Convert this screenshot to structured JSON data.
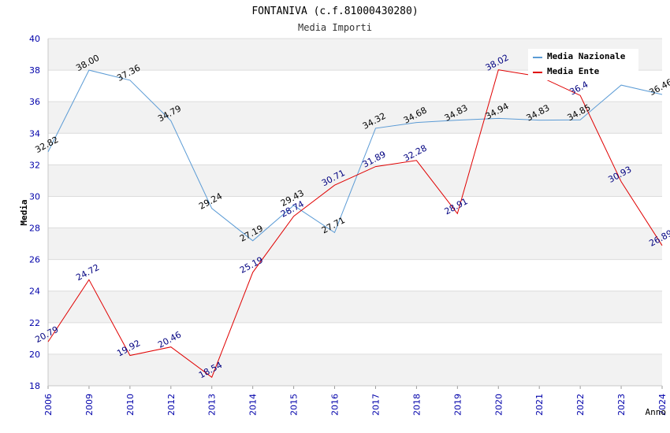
{
  "chart_data": {
    "type": "line",
    "title": "FONTANIVA (c.f.81000430280)",
    "subtitle": "Media Importi",
    "xlabel": "Anno",
    "ylabel": "Media",
    "ylim": [
      18,
      40
    ],
    "yticks": [
      18,
      20,
      22,
      24,
      26,
      28,
      30,
      32,
      34,
      36,
      38,
      40
    ],
    "categories": [
      "2006",
      "2009",
      "2010",
      "2012",
      "2013",
      "2014",
      "2015",
      "2016",
      "2017",
      "2018",
      "2019",
      "2020",
      "2021",
      "2022",
      "2023",
      "2024"
    ],
    "grid": true,
    "legend_position": "top-right",
    "series": [
      {
        "name": "Media Nazionale",
        "color": "#5b9bd5",
        "label_color": "#000000",
        "values": [
          32.82,
          38.0,
          37.36,
          34.79,
          29.24,
          27.19,
          29.43,
          27.71,
          34.32,
          34.68,
          34.83,
          34.94,
          34.83,
          34.85,
          37.05,
          36.46
        ],
        "labels": [
          "32.82",
          "38.00",
          "37.36",
          "34.79",
          "29.24",
          "27.19",
          "29.43",
          "27.71",
          "34.32",
          "34.68",
          "34.83",
          "34.94",
          "34.83",
          "34.85",
          "",
          "36.46"
        ]
      },
      {
        "name": "Media Ente",
        "color": "#e00000",
        "label_color": "#000080",
        "values": [
          20.79,
          24.72,
          19.92,
          20.46,
          18.54,
          25.19,
          28.74,
          30.71,
          31.89,
          32.28,
          28.91,
          38.02,
          37.6,
          36.4,
          30.93,
          26.89
        ],
        "labels": [
          "20.79",
          "24.72",
          "19.92",
          "20.46",
          "18.54",
          "25.19",
          "28.74",
          "30.71",
          "31.89",
          "32.28",
          "28.91",
          "38.02",
          "",
          "36.4",
          "30.93",
          "26.89"
        ]
      }
    ]
  }
}
